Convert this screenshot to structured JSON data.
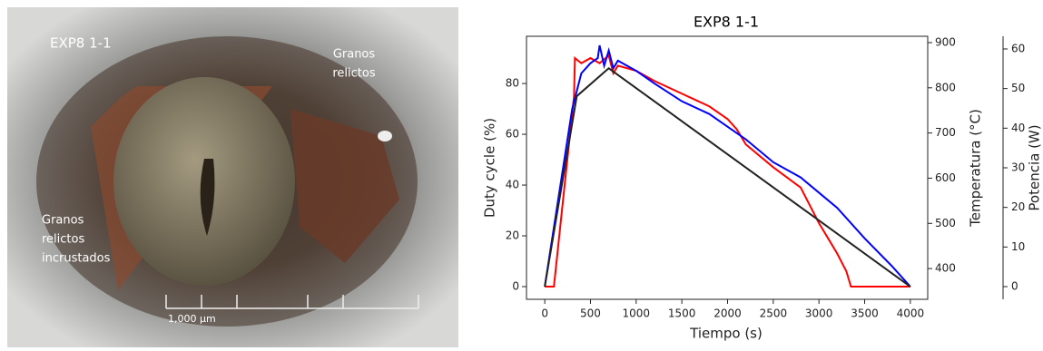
{
  "photo": {
    "label": "EXP8 1-1",
    "annotations": [
      {
        "lines": [
          "Granos",
          "relictos"
        ]
      },
      {
        "lines": [
          "Granos",
          "relictos",
          "incrustados"
        ]
      }
    ],
    "scale_bar": "1,000 μm"
  },
  "chart_data": {
    "type": "line",
    "title": "EXP8 1-1",
    "x_label": "Tiempo (s)",
    "y_label": "Duty cycle (%)",
    "y2_label": "Temperatura (°C)",
    "y3_label": "Potencia (W)",
    "xlim": [
      -200,
      4190
    ],
    "xticks": [
      0,
      500,
      1000,
      1500,
      2000,
      2500,
      3000,
      3500,
      4000
    ],
    "ylim": [
      -5,
      98.6
    ],
    "yticks": [
      0,
      20,
      40,
      60,
      80
    ],
    "y2lim": [
      332,
      914
    ],
    "y2ticks": [
      400,
      500,
      600,
      700,
      800,
      900
    ],
    "y3lim": [
      -3.2,
      63.2
    ],
    "y3ticks": [
      0,
      10,
      20,
      30,
      40,
      50,
      60
    ],
    "series": [
      {
        "color": "#ff0000",
        "x": [
          0,
          100,
          320,
          330,
          400,
          500,
          600,
          700,
          750,
          800,
          1000,
          1200,
          1500,
          1800,
          2000,
          2100,
          2200,
          2500,
          2800,
          2900,
          3000,
          3100,
          3200,
          3300,
          3350,
          4000
        ],
        "values": [
          0,
          0,
          75,
          90,
          88,
          90,
          88,
          91,
          84,
          87,
          85,
          81,
          76,
          71,
          66,
          62,
          56,
          47,
          39,
          32,
          25,
          19,
          13,
          6,
          0,
          0
        ]
      },
      {
        "color": "#0000ff",
        "x": [
          0,
          300,
          400,
          500,
          580,
          600,
          650,
          700,
          750,
          800,
          1000,
          1200,
          1500,
          1800,
          2000,
          2200,
          2500,
          2800,
          3000,
          3200,
          3500,
          3800,
          4000
        ],
        "values": [
          0,
          70,
          84,
          88,
          90,
          95,
          87,
          93,
          86,
          89,
          85,
          80,
          73,
          68,
          63,
          58,
          49,
          43,
          37,
          31,
          19,
          8,
          0
        ]
      },
      {
        "color": "#222222",
        "x": [
          0,
          350,
          700,
          4000
        ],
        "values": [
          0,
          75,
          86,
          0
        ]
      }
    ]
  }
}
